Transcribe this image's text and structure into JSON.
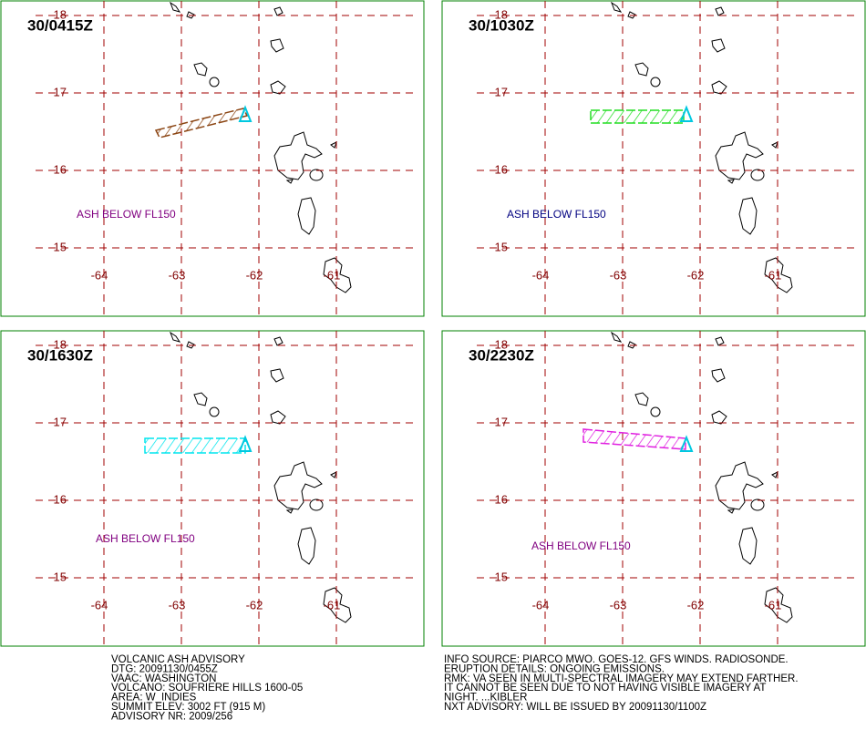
{
  "panels": [
    {
      "time": "30/0415Z",
      "annotation": "ASH BELOW FL150",
      "ash_color": "#8b4513",
      "annotation_color": "#800080"
    },
    {
      "time": "30/1030Z",
      "annotation": "ASH BELOW FL150",
      "ash_color": "#22dd22",
      "annotation_color": "#000080"
    },
    {
      "time": "30/1630Z",
      "annotation": "ASH BELOW FL150",
      "ash_color": "#00e5ee",
      "annotation_color": "#800080"
    },
    {
      "time": "30/2230Z",
      "annotation": "ASH BELOW FL150",
      "ash_color": "#e020e0",
      "annotation_color": "#800080"
    }
  ],
  "lats": [
    18,
    17,
    16,
    15
  ],
  "lons": [
    -64,
    -63,
    -62,
    -61
  ],
  "info_left": [
    "VOLCANIC ASH ADVISORY",
    "DTG: 20091130/0455Z",
    "VAAC: WASHINGTON",
    "VOLCANO: SOUFRIERE HILLS 1600-05",
    "AREA: W_INDIES",
    "SUMMIT ELEV: 3002 FT (915 M)",
    "ADVISORY NR: 2009/256"
  ],
  "info_right": [
    "INFO SOURCE: PIARCO MWO. GOES-12. GFS WINDS. RADIOSONDE.",
    "ERUPTION DETAILS: ONGOING EMISSIONS.",
    "RMK: VA SEEN IN MULTI-SPECTRAL IMAGERY MAY EXTEND FARTHER.",
    "IT CANNOT BE SEEN DUE TO NOT HAVING VISIBLE IMAGERY AT",
    "NIGHT. ...KIBLER",
    "NXT ADVISORY: WILL BE ISSUED BY 20091130/1100Z"
  ]
}
